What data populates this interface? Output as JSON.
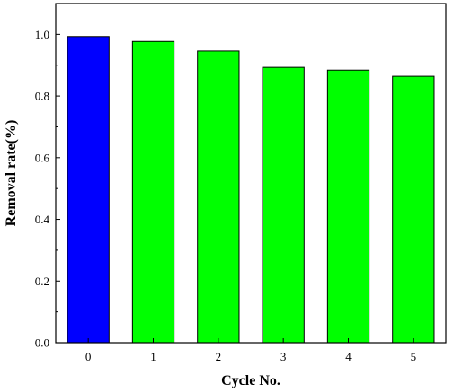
{
  "chart_data": {
    "type": "bar",
    "categories": [
      "0",
      "1",
      "2",
      "3",
      "4",
      "5"
    ],
    "values": [
      0.993,
      0.977,
      0.946,
      0.893,
      0.884,
      0.864
    ],
    "bar_colors": [
      "#0000ff",
      "#00ff00",
      "#00ff00",
      "#00ff00",
      "#00ff00",
      "#00ff00"
    ],
    "bar_outline_color": "#000000",
    "xlabel": "Cycle No.",
    "ylabel": "Removal rate(%)",
    "ylim": [
      0,
      1.1
    ],
    "yticks": [
      "0.0",
      "0.2",
      "0.4",
      "0.6",
      "0.8",
      "1.0"
    ],
    "ytick_values": [
      0,
      0.2,
      0.4,
      0.6,
      0.8,
      1.0
    ],
    "grid": false,
    "legend": "none"
  }
}
